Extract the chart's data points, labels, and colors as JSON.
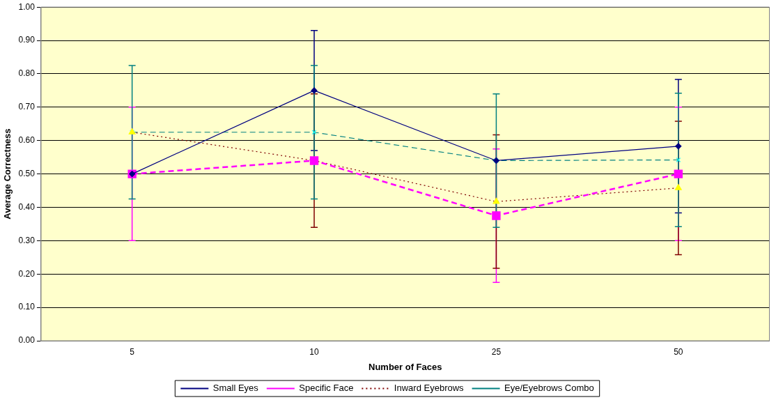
{
  "chart_data": {
    "type": "line",
    "xlabel": "Number of Faces",
    "ylabel": "Average Correctness",
    "categories": [
      "5",
      "10",
      "25",
      "50"
    ],
    "ylim": [
      0,
      1
    ],
    "yticks": [
      {
        "value": 0,
        "label": "0.00"
      },
      {
        "value": 0.1,
        "label": "0.10"
      },
      {
        "value": 0.2,
        "label": "0.20"
      },
      {
        "value": 0.3,
        "label": "0.30"
      },
      {
        "value": 0.4,
        "label": "0.40"
      },
      {
        "value": 0.5,
        "label": "0.50"
      },
      {
        "value": 0.6,
        "label": "0.60"
      },
      {
        "value": 0.7,
        "label": "0.70"
      },
      {
        "value": 0.8,
        "label": "0.80"
      },
      {
        "value": 0.9,
        "label": "0.90"
      },
      {
        "value": 1,
        "label": "1.00"
      }
    ],
    "grid": "y",
    "legend": "bottom",
    "series": [
      {
        "name": "Small Eyes",
        "color": "#000080",
        "marker": "diamond",
        "line_style": "solid",
        "values": [
          0.5,
          0.75,
          0.54,
          0.583
        ],
        "errors": [
          null,
          0.18,
          null,
          0.2
        ]
      },
      {
        "name": "Specific Face",
        "color": "#ff00ff",
        "marker": "square",
        "line_style": "dashed",
        "values": [
          0.5,
          0.54,
          0.375,
          0.5
        ],
        "errors": [
          0.2,
          null,
          0.2,
          0.2
        ]
      },
      {
        "name": "Inward Eyebrows",
        "color": "#800000",
        "colors": [
          "#ffff00",
          "#ffff00",
          "#ffff00",
          "#ffff00"
        ],
        "marker": "triangle",
        "line_style": "dotted",
        "values": [
          0.625,
          0.54,
          0.417,
          0.458
        ],
        "errors": [
          null,
          0.2,
          0.2,
          0.2
        ]
      },
      {
        "name": "Eye/Eyebrows Combo",
        "color": "#008080",
        "colors": [
          "#00ffff",
          "#00ffff",
          "#00ffff",
          "#00ffff"
        ],
        "marker": "cross",
        "line_style": "dashed",
        "values": [
          0.625,
          0.625,
          0.54,
          0.542
        ],
        "errors": [
          0.2,
          0.2,
          0.2,
          0.2
        ]
      }
    ]
  }
}
